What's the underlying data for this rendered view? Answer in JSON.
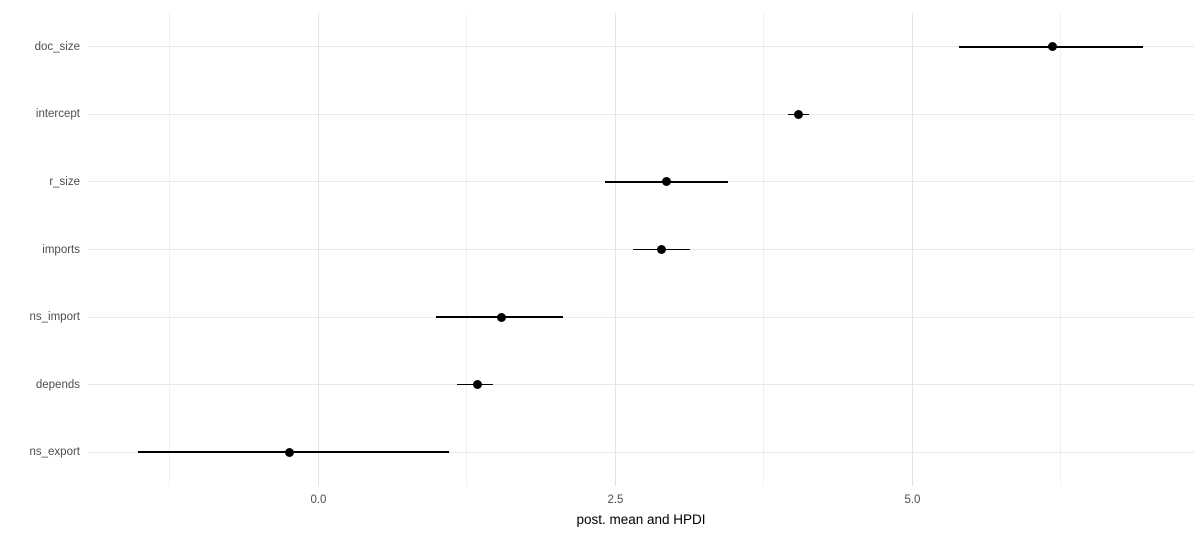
{
  "chart_data": {
    "type": "scatter",
    "subtype": "horizontal-pointrange",
    "title": "",
    "xlabel": "post. mean and HPDI",
    "ylabel": "",
    "categories": [
      "doc_size",
      "intercept",
      "r_size",
      "imports",
      "ns_import",
      "depends",
      "ns_export"
    ],
    "points": [
      {
        "label": "doc_size",
        "mean": 6.18,
        "lo": 5.39,
        "hi": 6.94
      },
      {
        "label": "intercept",
        "mean": 4.04,
        "lo": 3.95,
        "hi": 4.13
      },
      {
        "label": "r_size",
        "mean": 2.93,
        "lo": 2.41,
        "hi": 3.45
      },
      {
        "label": "imports",
        "mean": 2.89,
        "lo": 2.65,
        "hi": 3.13
      },
      {
        "label": "ns_import",
        "mean": 1.54,
        "lo": 0.99,
        "hi": 2.06
      },
      {
        "label": "depends",
        "mean": 1.34,
        "lo": 1.17,
        "hi": 1.47
      },
      {
        "label": "ns_export",
        "mean": -0.24,
        "lo": -1.52,
        "hi": 1.1
      }
    ],
    "xlim": [
      -1.94,
      7.37
    ],
    "x_ticks": [
      0.0,
      2.5,
      5.0
    ],
    "x_tick_labels": [
      "0.0",
      "2.5",
      "5.0"
    ],
    "x_minor_ticks": [
      -1.25,
      1.25,
      3.75,
      6.25
    ],
    "grid": true,
    "legend": "none",
    "colors": {
      "background": "#ffffff",
      "point": "#000000",
      "range_line": "#000000",
      "grid_major": "#e3e3e3",
      "grid_minor": "#f1f1f1",
      "tick_text": "#4d4d4d",
      "axis_title": "#000000"
    }
  }
}
